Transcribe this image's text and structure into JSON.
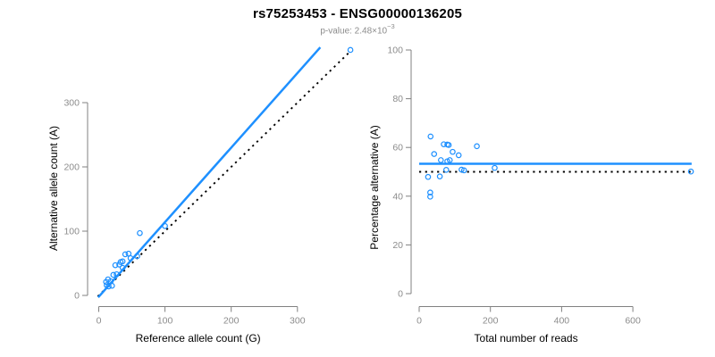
{
  "header": {
    "title": "rs75253453 - ENSG00000136205",
    "subtitle_prefix": "p-value: 2.48×10",
    "subtitle_exponent": "−3"
  },
  "colors": {
    "accent_blue": "#1E90FF",
    "line_black": "#000000",
    "axis_line_gray": "#808080",
    "tick_label_gray": "#8c8c8c",
    "axis_title_black": "#000000",
    "background": "#ffffff"
  },
  "chart_data": [
    {
      "type": "scatter",
      "panel": "left",
      "xlabel": "Reference allele count (G)",
      "ylabel": "Alternative allele count (A)",
      "x_ticks": [
        0,
        100,
        200,
        300
      ],
      "y_ticks": [
        0,
        100,
        200,
        300
      ],
      "xlim": [
        -1.5,
        381
      ],
      "ylim": [
        -3,
        386
      ],
      "grid": false,
      "legend": "none",
      "point_color": "#1E90FF",
      "points": [
        [
          12,
          16
        ],
        [
          15,
          14
        ],
        [
          20,
          15
        ],
        [
          14,
          25
        ],
        [
          18,
          22
        ],
        [
          11,
          21
        ],
        [
          22,
          32
        ],
        [
          27,
          33
        ],
        [
          25,
          47
        ],
        [
          31,
          48
        ],
        [
          33,
          52
        ],
        [
          36,
          53
        ],
        [
          36,
          43
        ],
        [
          40,
          64
        ],
        [
          45,
          65
        ],
        [
          48,
          58
        ],
        [
          62,
          97
        ],
        [
          58,
          61
        ],
        [
          100,
          108
        ],
        [
          380,
          382
        ]
      ],
      "lines": [
        {
          "name": "identity-line",
          "style": "dotted",
          "color": "#000000",
          "slope": 1,
          "intercept": 0,
          "width": 1.9
        },
        {
          "name": "fit-line",
          "style": "solid",
          "color": "#1E90FF",
          "slope": 1.16,
          "intercept": -2,
          "width": 2.5
        }
      ]
    },
    {
      "type": "scatter",
      "panel": "right",
      "xlabel": "Total number of reads",
      "ylabel": "Percentage alternative (A)",
      "x_ticks": [
        0,
        200,
        400,
        600
      ],
      "y_ticks": [
        0,
        20,
        40,
        60,
        80,
        100
      ],
      "xlim": [
        0,
        775
      ],
      "ylim": [
        0,
        100
      ],
      "grid": false,
      "legend": "none",
      "point_color": "#1E90FF",
      "points": [
        [
          32,
          64.5
        ],
        [
          69,
          61.3
        ],
        [
          79,
          61.2
        ],
        [
          83,
          61
        ],
        [
          162,
          60.5
        ],
        [
          42,
          57.3
        ],
        [
          94,
          58.2
        ],
        [
          111,
          56.8
        ],
        [
          61,
          54.8
        ],
        [
          79,
          54.3
        ],
        [
          86,
          54.8
        ],
        [
          76,
          50.8
        ],
        [
          119,
          50.9
        ],
        [
          126,
          50.6
        ],
        [
          212,
          51.6
        ],
        [
          25,
          47.9
        ],
        [
          58,
          48.1
        ],
        [
          31,
          41.5
        ],
        [
          31,
          39.8
        ],
        [
          763,
          50.1
        ]
      ],
      "lines": [
        {
          "name": "null-line",
          "style": "dotted",
          "color": "#000000",
          "slope": 0,
          "intercept": 50,
          "width": 1.9,
          "x_start": 0,
          "x_end": 772
        },
        {
          "name": "fit-line",
          "style": "solid",
          "color": "#1E90FF",
          "slope": 0,
          "intercept": 53.3,
          "width": 2.5,
          "x_start": 0,
          "x_end": 765
        }
      ]
    }
  ]
}
